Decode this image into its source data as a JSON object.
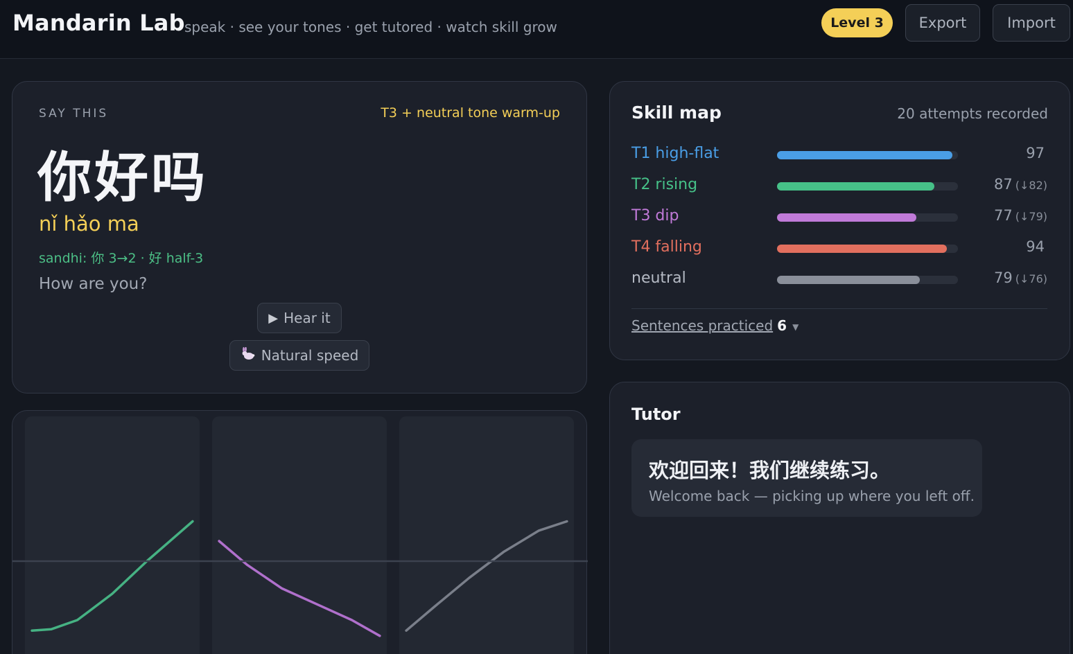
{
  "header": {
    "brand": "Mandarin Lab",
    "tagline": "speak · see your tones · get tutored · watch skill grow",
    "level_badge": "Level 3",
    "export_label": "Export",
    "import_label": "Import"
  },
  "prompt": {
    "section_label": "SAY THIS",
    "drill_tag": "T3 + neutral tone warm-up",
    "hanzi": "你好吗",
    "pinyin": "nǐ hǎo ma",
    "sandhi": "sandhi: 你 3→2 · 好 half-3",
    "translation": "How are you?",
    "hear_label": "Hear it",
    "hear_icon": "play-icon",
    "speed_label": "Natural speed",
    "speed_icon": "rabbit-icon"
  },
  "contours": {
    "panels": [
      {
        "color": "#46b283",
        "points": [
          [
            0.04,
            0.12
          ],
          [
            0.15,
            0.13
          ],
          [
            0.3,
            0.2
          ],
          [
            0.5,
            0.4
          ],
          [
            0.7,
            0.65
          ],
          [
            0.96,
            0.95
          ]
        ]
      },
      {
        "color": "#b070cc",
        "points": [
          [
            0.04,
            0.8
          ],
          [
            0.2,
            0.62
          ],
          [
            0.4,
            0.44
          ],
          [
            0.6,
            0.32
          ],
          [
            0.8,
            0.2
          ],
          [
            0.96,
            0.08
          ]
        ]
      },
      {
        "color": "#7a7f8a",
        "points": [
          [
            0.04,
            0.12
          ],
          [
            0.2,
            0.3
          ],
          [
            0.4,
            0.52
          ],
          [
            0.6,
            0.72
          ],
          [
            0.8,
            0.88
          ],
          [
            0.96,
            0.95
          ]
        ]
      }
    ]
  },
  "skill_map": {
    "title": "Skill map",
    "attempts": "20 attempts recorded",
    "rows": [
      {
        "name": "T1 high-flat",
        "value": 97,
        "prev": "",
        "color": "#4a9ee6"
      },
      {
        "name": "T2 rising",
        "value": 87,
        "prev": "(↓82)",
        "color": "#46c188"
      },
      {
        "name": "T3 dip",
        "value": 77,
        "prev": "(↓79)",
        "color": "#c07ad8"
      },
      {
        "name": "T4 falling",
        "value": 94,
        "prev": "",
        "color": "#e26f5e"
      },
      {
        "name": "neutral",
        "value": 79,
        "prev": "(↓76)",
        "color": "#8a8f9a"
      }
    ],
    "practiced_label": "Sentences practiced",
    "practiced_count": "6"
  },
  "tutor": {
    "title": "Tutor",
    "message_zh": "欢迎回来！我们继续练习。",
    "message_en": "Welcome back — picking up where you left off."
  }
}
